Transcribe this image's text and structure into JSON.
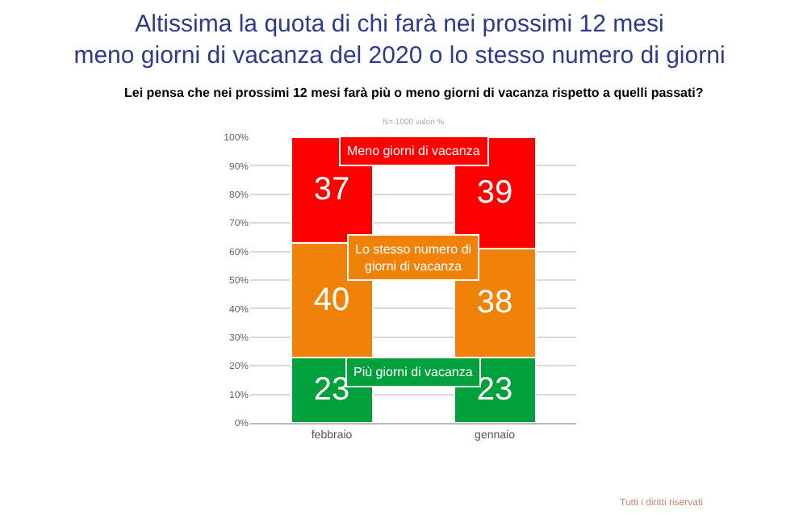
{
  "chart_data": {
    "type": "bar",
    "stacked": true,
    "title": "Altissima la quota di chi farà nei prossimi 12 mesi\nmeno giorni di vacanza del 2020 o lo stesso numero di giorni",
    "subtitle": "Lei pensa che nei prossimi 12 mesi farà più o meno giorni di vacanza rispetto a quelli passati?",
    "categories": [
      "febbraio",
      "gennaio"
    ],
    "series": [
      {
        "name": "Più giorni di vacanza",
        "color": "#00a03c",
        "values": [
          23,
          23
        ]
      },
      {
        "name": "Lo stesso numero di giorni di vacanza",
        "color": "#f0820a",
        "values": [
          40,
          38
        ]
      },
      {
        "name": "Meno giorni di vacanza",
        "color": "#ff0000",
        "values": [
          37,
          39
        ]
      }
    ],
    "ylim": [
      0,
      100
    ],
    "yticks": [
      {
        "value": 0,
        "label": "0%"
      },
      {
        "value": 10,
        "label": "10%"
      },
      {
        "value": 20,
        "label": "20%"
      },
      {
        "value": 30,
        "label": "30%"
      },
      {
        "value": 40,
        "label": "40%"
      },
      {
        "value": 50,
        "label": "50%"
      },
      {
        "value": 60,
        "label": "60%"
      },
      {
        "value": 70,
        "label": "70%"
      },
      {
        "value": 80,
        "label": "80%"
      },
      {
        "value": 90,
        "label": "90%"
      },
      {
        "value": 100,
        "label": "100%"
      }
    ],
    "grid": "y",
    "legend": false,
    "data_labels": true,
    "annotations": [
      "N= 1000 valori %",
      "Tutti i diritti riservati"
    ]
  }
}
